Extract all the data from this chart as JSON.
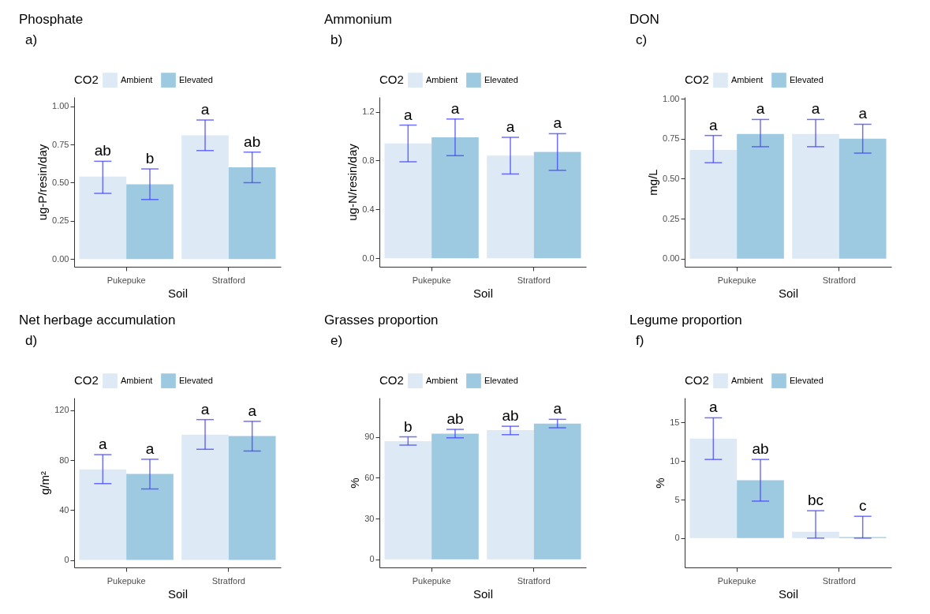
{
  "chart_data": [
    {
      "type": "bar",
      "title": "Phosphate",
      "annotations": [
        "a)"
      ],
      "xlabel": "Soil",
      "ylabel": "ug-P/resin/day",
      "legend_title": "CO2",
      "legend": "top",
      "categories": [
        "Pukepuke",
        "Stratford"
      ],
      "series": [
        {
          "name": "Ambient",
          "color": "#dde9f5",
          "values": [
            0.54,
            0.81
          ],
          "errors": [
            [
              0.43,
              0.64
            ],
            [
              0.71,
              0.91
            ]
          ],
          "value_labels": [
            "ab",
            "a"
          ]
        },
        {
          "name": "Elevated",
          "color": "#9ecae1",
          "values": [
            0.49,
            0.6
          ],
          "errors": [
            [
              0.39,
              0.59
            ],
            [
              0.5,
              0.7
            ]
          ],
          "value_labels": [
            "b",
            "ab"
          ]
        }
      ],
      "ylim": [
        -0.05,
        1.06
      ],
      "yticks": [
        {
          "value": 0,
          "label": "0.00"
        },
        0.25,
        {
          "value": 0.5,
          "label": "0.50"
        },
        0.75,
        {
          "value": 1,
          "label": "1.00"
        }
      ]
    },
    {
      "type": "bar",
      "title": "Ammonium",
      "annotations": [
        "b)"
      ],
      "xlabel": "Soil",
      "ylabel": "ug-N/resin/day",
      "legend_title": "CO2",
      "legend": "top",
      "categories": [
        "Pukepuke",
        "Stratford"
      ],
      "series": [
        {
          "name": "Ambient",
          "color": "#dde9f5",
          "values": [
            0.94,
            0.84
          ],
          "errors": [
            [
              0.79,
              1.09
            ],
            [
              0.69,
              0.99
            ]
          ],
          "value_labels": [
            "a",
            "a"
          ]
        },
        {
          "name": "Elevated",
          "color": "#9ecae1",
          "values": [
            0.99,
            0.87
          ],
          "errors": [
            [
              0.84,
              1.14
            ],
            [
              0.72,
              1.02
            ]
          ],
          "value_labels": [
            "a",
            "a"
          ]
        }
      ],
      "ylim": [
        -0.07,
        1.32
      ],
      "yticks": [
        {
          "value": 0,
          "label": "0.0"
        },
        0.4,
        0.8,
        1.2
      ]
    },
    {
      "type": "bar",
      "title": "DON",
      "annotations": [
        "c)"
      ],
      "xlabel": "Soil",
      "ylabel": "mg/L",
      "legend_title": "CO2",
      "legend": "top",
      "categories": [
        "Pukepuke",
        "Stratford"
      ],
      "series": [
        {
          "name": "Ambient",
          "color": "#dde9f5",
          "values": [
            0.68,
            0.78
          ],
          "errors": [
            [
              0.6,
              0.77
            ],
            [
              0.7,
              0.87
            ]
          ],
          "value_labels": [
            "a",
            "a"
          ]
        },
        {
          "name": "Elevated",
          "color": "#9ecae1",
          "values": [
            0.78,
            0.75
          ],
          "errors": [
            [
              0.7,
              0.87
            ],
            [
              0.66,
              0.84
            ]
          ],
          "value_labels": [
            "a",
            "a"
          ]
        }
      ],
      "ylim": [
        -0.05,
        1.01
      ],
      "yticks": [
        {
          "value": 0,
          "label": "0.00"
        },
        0.25,
        {
          "value": 0.5,
          "label": "0.50"
        },
        0.75,
        {
          "value": 1,
          "label": "1.00"
        }
      ]
    },
    {
      "type": "bar",
      "title": "Net herbage accumulation",
      "annotations": [
        "d)"
      ],
      "xlabel": "Soil",
      "ylabel": "g/m²",
      "legend_title": "CO2",
      "legend": "top",
      "categories": [
        "Pukepuke",
        "Stratford"
      ],
      "series": [
        {
          "name": "Ambient",
          "color": "#dde9f5",
          "values": [
            72.6,
            100.5
          ],
          "errors": [
            [
              61.2,
              84.4
            ],
            [
              88.7,
              112.5
            ]
          ],
          "value_labels": [
            "a",
            "a"
          ]
        },
        {
          "name": "Elevated",
          "color": "#9ecae1",
          "values": [
            68.9,
            99.3
          ],
          "errors": [
            [
              56.9,
              80.7
            ],
            [
              87.3,
              111.1
            ]
          ],
          "value_labels": [
            "a",
            "a"
          ]
        }
      ],
      "ylim": [
        -6,
        130
      ],
      "yticks": [
        0,
        40,
        80,
        120
      ]
    },
    {
      "type": "bar",
      "title": "Grasses proportion",
      "annotations": [
        "e)"
      ],
      "xlabel": "Soil",
      "ylabel": "%",
      "legend_title": "CO2",
      "legend": "top",
      "categories": [
        "Pukepuke",
        "Stratford"
      ],
      "series": [
        {
          "name": "Ambient",
          "color": "#dde9f5",
          "values": [
            87.0,
            95.1
          ],
          "errors": [
            [
              84.1,
              90.2
            ],
            [
              91.8,
              98.0
            ]
          ],
          "value_labels": [
            "b",
            "ab"
          ]
        },
        {
          "name": "Elevated",
          "color": "#9ecae1",
          "values": [
            92.6,
            100.0
          ],
          "errors": [
            [
              89.5,
              95.7
            ],
            [
              96.9,
              103.1
            ]
          ],
          "value_labels": [
            "ab",
            "a"
          ]
        }
      ],
      "ylim": [
        -6,
        119
      ],
      "yticks": [
        0,
        30,
        60,
        90
      ]
    },
    {
      "type": "bar",
      "title": "Legume proportion",
      "annotations": [
        "f)"
      ],
      "xlabel": "Soil",
      "ylabel": "%",
      "legend_title": "CO2",
      "legend": "top",
      "categories": [
        "Pukepuke",
        "Stratford"
      ],
      "series": [
        {
          "name": "Ambient",
          "color": "#dde9f5",
          "values": [
            12.9,
            0.84
          ],
          "errors": [
            [
              10.2,
              15.6
            ],
            [
              0,
              3.55
            ]
          ],
          "value_labels": [
            "a",
            "bc"
          ]
        },
        {
          "name": "Elevated",
          "color": "#9ecae1",
          "values": [
            7.5,
            0.15
          ],
          "errors": [
            [
              4.8,
              10.2
            ],
            [
              0,
              2.83
            ]
          ],
          "value_labels": [
            "ab",
            "c"
          ]
        }
      ],
      "ylim": [
        -3.8,
        18.2
      ],
      "yticks": [
        0,
        5,
        10,
        15
      ]
    }
  ]
}
